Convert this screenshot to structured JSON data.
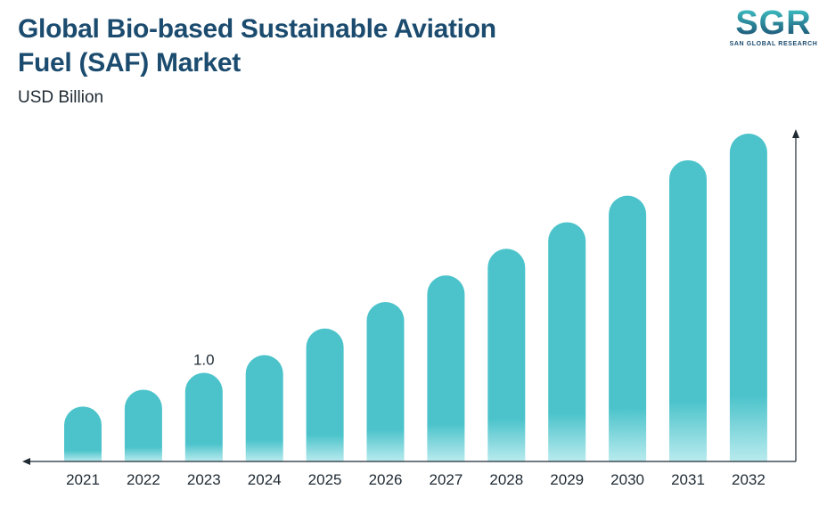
{
  "header": {
    "title_line1": "Global Bio-based Sustainable Aviation",
    "title_line2": "Fuel (SAF) Market",
    "unit": "USD Billion"
  },
  "logo": {
    "mark": "SGR",
    "text": "SAN GLOBAL RESEARCH"
  },
  "chart_data": {
    "type": "bar",
    "title": "Global Bio-based Sustainable Aviation Fuel (SAF) Market",
    "ylabel": "USD Billion",
    "xlabel": "",
    "categories": [
      "2021",
      "2022",
      "2023",
      "2024",
      "2025",
      "2026",
      "2027",
      "2028",
      "2029",
      "2030",
      "2031",
      "2032"
    ],
    "values": [
      0.62,
      0.81,
      1.0,
      1.2,
      1.5,
      1.8,
      2.1,
      2.4,
      2.7,
      3.0,
      3.4,
      3.7
    ],
    "data_labels": [
      {
        "category": "2023",
        "text": "1.0"
      }
    ],
    "ylim": [
      0,
      3.7
    ],
    "bar_color": "#4cc3cb",
    "bar_base_color": "#b9ebee",
    "axis_color": "#1f2a33",
    "grid": false,
    "legend": "none"
  }
}
